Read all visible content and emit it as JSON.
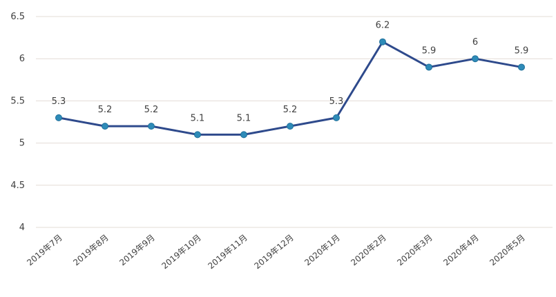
{
  "chart_data": {
    "type": "line",
    "categories": [
      "2019年7月",
      "2019年8月",
      "2019年9月",
      "2019年10月",
      "2019年11月",
      "2019年12月",
      "2020年1月",
      "2020年2月",
      "2020年3月",
      "2020年4月",
      "2020年5月"
    ],
    "series": [
      {
        "values": [
          5.3,
          5.2,
          5.2,
          5.1,
          5.1,
          5.2,
          5.3,
          6.2,
          5.9,
          6,
          5.9
        ]
      }
    ],
    "data_labels": [
      "5.3",
      "5.2",
      "5.2",
      "5.1",
      "5.1",
      "5.2",
      "5.3",
      "6.2",
      "5.9",
      "6",
      "5.9"
    ],
    "y_ticks": [
      "4",
      "4.5",
      "5",
      "5.5",
      "6",
      "6.5"
    ],
    "ylim": [
      4,
      6.5
    ],
    "grid": true,
    "legend": "none",
    "colors": {
      "line": "#2e4a8c",
      "marker": "#2e8bb8",
      "grid": "#e3dcd6",
      "text": "#404040"
    }
  }
}
